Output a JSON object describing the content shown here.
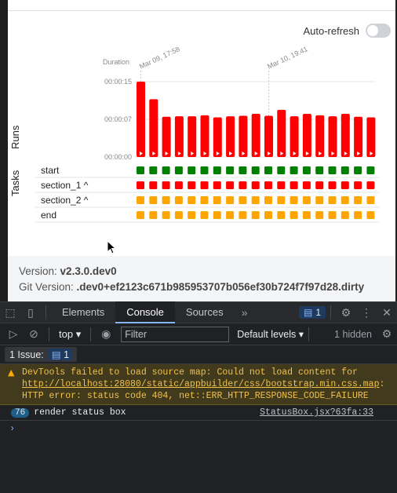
{
  "app": {
    "auto_refresh_label": "Auto-refresh",
    "auto_refresh_on": false,
    "runs_label": "Runs",
    "tasks_label": "Tasks",
    "duration_label": "Duration",
    "version_label": "Version:",
    "version_value": "v2.3.0.dev0",
    "git_label": "Git Version:",
    "git_value": ".dev0+ef2123c671b985953707b056ef30b724f7f97d28.dirty",
    "tasks": [
      {
        "name": "start",
        "expand": ""
      },
      {
        "name": "section_1",
        "expand": "^"
      },
      {
        "name": "section_2",
        "expand": "^"
      },
      {
        "name": "end",
        "expand": ""
      }
    ]
  },
  "chart_data": {
    "type": "bar",
    "ylabel": "Duration",
    "y_ticks": [
      "00:00:15",
      "00:00:07",
      "00:00:00"
    ],
    "ylim": [
      0,
      15
    ],
    "x_labels": [
      {
        "run_index": 0,
        "text": "Mar 09, 17:58"
      },
      {
        "run_index": 10,
        "text": "Mar 10, 19:41"
      }
    ],
    "values": [
      15,
      11.5,
      8,
      8.1,
      8.1,
      8.3,
      7.9,
      8.1,
      8.2,
      8.6,
      8.2,
      9.4,
      8.1,
      8.6,
      8.3,
      8.1,
      8.6,
      8.0,
      7.9
    ],
    "task_status": {
      "start": [
        "success",
        "success",
        "success",
        "success",
        "success",
        "success",
        "success",
        "success",
        "success",
        "success",
        "success",
        "success",
        "success",
        "success",
        "success",
        "success",
        "success",
        "success",
        "success"
      ],
      "section_1": [
        "failed",
        "failed",
        "failed",
        "failed",
        "failed",
        "failed",
        "failed",
        "failed",
        "failed",
        "failed",
        "failed",
        "failed",
        "failed",
        "failed",
        "failed",
        "failed",
        "failed",
        "failed",
        "failed"
      ],
      "section_2": [
        "upstream_failed",
        "upstream_failed",
        "upstream_failed",
        "upstream_failed",
        "upstream_failed",
        "upstream_failed",
        "upstream_failed",
        "upstream_failed",
        "upstream_failed",
        "upstream_failed",
        "upstream_failed",
        "upstream_failed",
        "upstream_failed",
        "upstream_failed",
        "upstream_failed",
        "upstream_failed",
        "upstream_failed",
        "upstream_failed",
        "upstream_failed"
      ],
      "end": [
        "upstream_failed",
        "upstream_failed",
        "upstream_failed",
        "upstream_failed",
        "upstream_failed",
        "upstream_failed",
        "upstream_failed",
        "upstream_failed",
        "upstream_failed",
        "upstream_failed",
        "upstream_failed",
        "upstream_failed",
        "upstream_failed",
        "upstream_failed",
        "upstream_failed",
        "upstream_failed",
        "upstream_failed",
        "upstream_failed",
        "upstream_failed"
      ]
    },
    "colors": {
      "failed": "#ff0000",
      "success": "#008000",
      "upstream_failed": "#ffa500",
      "grid": "#e6e6e6"
    }
  },
  "devtools": {
    "tabs": [
      "Elements",
      "Console",
      "Sources"
    ],
    "active_tab": "Console",
    "more_tabs": "»",
    "issues_count": "1",
    "context": "top",
    "filter_placeholder": "Filter",
    "levels": "Default levels",
    "hidden": "1 hidden",
    "issues_label": "1 Issue:",
    "issues_chip_count": "1",
    "warning_text": "DevTools failed to load source map: Could not load content for ",
    "warning_link": "http://localhost:28080/static/appbuilder/css/bootstrap.min.css.map",
    "warning_tail": ": HTTP error: status code 404, net::ERR_HTTP_RESPONSE_CODE_FAILURE",
    "log_count": "76",
    "log_text": "render status box",
    "log_source": "StatusBox.jsx?63fa:33",
    "prompt": "›"
  }
}
